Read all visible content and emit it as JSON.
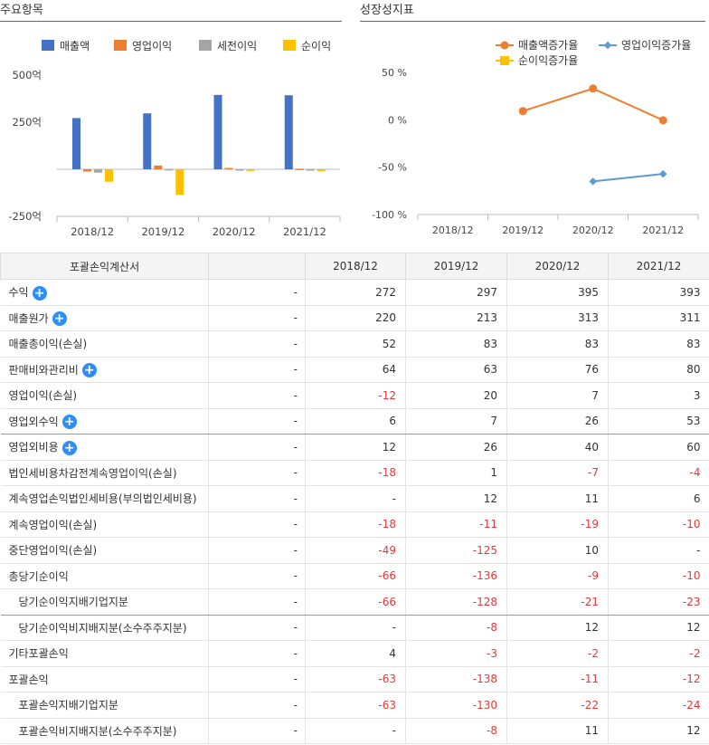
{
  "titles": {
    "left": "주요항목",
    "right": "성장성지표"
  },
  "chart_data": [
    {
      "type": "bar",
      "categories": [
        "2018/12",
        "2019/12",
        "2020/12",
        "2021/12"
      ],
      "series": [
        {
          "name": "매출액",
          "color": "#4472c4",
          "values": [
            272,
            297,
            395,
            393
          ]
        },
        {
          "name": "영업이익",
          "color": "#ed7d31",
          "values": [
            -12,
            20,
            7,
            3
          ]
        },
        {
          "name": "세전이익",
          "color": "#a5a5a5",
          "values": [
            -18,
            1,
            -7,
            -4
          ]
        },
        {
          "name": "순이익",
          "color": "#ffc000",
          "values": [
            -66,
            -136,
            -9,
            -10
          ]
        }
      ],
      "yticks": [
        "500억",
        "250억",
        "",
        "-250억"
      ],
      "ylim": [
        -250,
        500
      ]
    },
    {
      "type": "line",
      "categories": [
        "2018/12",
        "2019/12",
        "2020/12",
        "2021/12"
      ],
      "series": [
        {
          "name": "매출액증가율",
          "color": "#ed7d31",
          "marker": "circle",
          "values": [
            null,
            9.2,
            33.0,
            -0.5
          ]
        },
        {
          "name": "영업이익증가율",
          "color": "#5b9bd5",
          "marker": "diamond",
          "values": [
            null,
            null,
            -65,
            -57.1
          ]
        },
        {
          "name": "순이익증가율",
          "color": "#ffc000",
          "marker": "square",
          "values": [
            null,
            null,
            null,
            null
          ]
        }
      ],
      "yticks": [
        "50 %",
        "0 %",
        "-50 %",
        "-100 %"
      ],
      "ylim": [
        -100,
        50
      ]
    }
  ],
  "table": {
    "header": [
      "포괄손익계산서",
      "",
      "2018/12",
      "2019/12",
      "2020/12",
      "2021/12"
    ],
    "rows": [
      {
        "label": "수익",
        "plus": true,
        "dash": "-",
        "values": [
          "272",
          "297",
          "395",
          "393"
        ]
      },
      {
        "label": "매출원가",
        "plus": true,
        "dash": "-",
        "values": [
          "220",
          "213",
          "313",
          "311"
        ]
      },
      {
        "label": "매출총이익(손실)",
        "plus": false,
        "dash": "-",
        "values": [
          "52",
          "83",
          "83",
          "83"
        ]
      },
      {
        "label": "판매비와관리비",
        "plus": true,
        "dash": "-",
        "values": [
          "64",
          "63",
          "76",
          "80"
        ]
      },
      {
        "label": "영업이익(손실)",
        "plus": false,
        "dash": "-",
        "values": [
          "-12",
          "20",
          "7",
          "3"
        ]
      },
      {
        "label": "영업외수익",
        "plus": true,
        "dash": "-",
        "values": [
          "6",
          "7",
          "26",
          "53"
        ],
        "sep": true
      },
      {
        "label": "영업외비용",
        "plus": true,
        "dash": "-",
        "values": [
          "12",
          "26",
          "40",
          "60"
        ]
      },
      {
        "label": "법인세비용차감전계속영업이익(손실)",
        "plus": false,
        "dash": "-",
        "values": [
          "-18",
          "1",
          "-7",
          "-4"
        ]
      },
      {
        "label": "계속영업손익법인세비용(부의법인세비용)",
        "plus": false,
        "dash": "-",
        "values": [
          "-",
          "12",
          "11",
          "6"
        ]
      },
      {
        "label": "계속영업이익(손실)",
        "plus": false,
        "dash": "-",
        "values": [
          "-18",
          "-11",
          "-19",
          "-10"
        ]
      },
      {
        "label": "중단영업이익(손실)",
        "plus": false,
        "dash": "-",
        "values": [
          "-49",
          "-125",
          "10",
          "-"
        ]
      },
      {
        "label": "총당기순이익",
        "plus": false,
        "dash": "-",
        "values": [
          "-66",
          "-136",
          "-9",
          "-10"
        ]
      },
      {
        "label": "당기순이익지배기업지분",
        "plus": false,
        "sub": true,
        "dash": "-",
        "values": [
          "-66",
          "-128",
          "-21",
          "-23"
        ],
        "sep": true
      },
      {
        "label": "당기순이익비지배지분(소수주주지분)",
        "plus": false,
        "sub": true,
        "dash": "-",
        "values": [
          "-",
          "-8",
          "12",
          "12"
        ]
      },
      {
        "label": "기타포괄손익",
        "plus": false,
        "dash": "-",
        "values": [
          "4",
          "-3",
          "-2",
          "-2"
        ]
      },
      {
        "label": "포괄손익",
        "plus": false,
        "dash": "-",
        "values": [
          "-63",
          "-138",
          "-11",
          "-12"
        ]
      },
      {
        "label": "포괄손익지배기업지분",
        "plus": false,
        "sub": true,
        "dash": "-",
        "values": [
          "-63",
          "-130",
          "-22",
          "-24"
        ]
      },
      {
        "label": "포괄손익비지배지분(소수주주지분)",
        "plus": false,
        "sub": true,
        "dash": "-",
        "values": [
          "-",
          "-8",
          "11",
          "12"
        ]
      }
    ]
  }
}
